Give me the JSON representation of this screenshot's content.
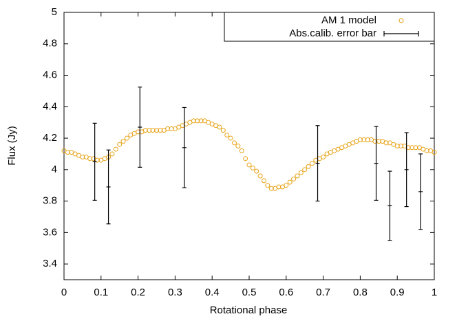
{
  "chart_data": {
    "type": "scatter",
    "xlabel": "Rotational phase",
    "ylabel": "Flux (Jy)",
    "xlim": [
      0,
      1
    ],
    "xticks": [
      0,
      0.1,
      0.2,
      0.3,
      0.4,
      0.5,
      0.6,
      0.7,
      0.8,
      0.9,
      1
    ],
    "ylim": [
      3.3,
      5
    ],
    "yticks": [
      3.4,
      3.6,
      3.8,
      4,
      4.2,
      4.4,
      4.6,
      4.8,
      5
    ],
    "legend": "upper right",
    "series": [
      {
        "name": "AM 1 model",
        "color": "#e8a317",
        "marker": "circle",
        "x": [
          0,
          0.01,
          0.02,
          0.03,
          0.04,
          0.05,
          0.06,
          0.07,
          0.08,
          0.09,
          0.1,
          0.11,
          0.12,
          0.13,
          0.14,
          0.15,
          0.16,
          0.17,
          0.18,
          0.19,
          0.2,
          0.21,
          0.22,
          0.23,
          0.24,
          0.25,
          0.26,
          0.27,
          0.28,
          0.29,
          0.3,
          0.31,
          0.32,
          0.33,
          0.34,
          0.35,
          0.36,
          0.37,
          0.38,
          0.39,
          0.4,
          0.41,
          0.42,
          0.43,
          0.44,
          0.45,
          0.46,
          0.47,
          0.48,
          0.49,
          0.5,
          0.51,
          0.52,
          0.53,
          0.54,
          0.55,
          0.56,
          0.57,
          0.58,
          0.59,
          0.6,
          0.61,
          0.62,
          0.63,
          0.64,
          0.65,
          0.66,
          0.67,
          0.68,
          0.69,
          0.7,
          0.71,
          0.72,
          0.73,
          0.74,
          0.75,
          0.76,
          0.77,
          0.78,
          0.79,
          0.8,
          0.81,
          0.82,
          0.83,
          0.84,
          0.85,
          0.86,
          0.87,
          0.88,
          0.89,
          0.9,
          0.91,
          0.92,
          0.93,
          0.94,
          0.95,
          0.96,
          0.97,
          0.98,
          0.99,
          1
        ],
        "values": [
          4.12,
          4.11,
          4.11,
          4.1,
          4.09,
          4.08,
          4.08,
          4.07,
          4.07,
          4.06,
          4.06,
          4.07,
          4.08,
          4.1,
          4.13,
          4.16,
          4.18,
          4.2,
          4.22,
          4.23,
          4.24,
          4.24,
          4.25,
          4.25,
          4.25,
          4.25,
          4.25,
          4.25,
          4.26,
          4.26,
          4.26,
          4.27,
          4.28,
          4.29,
          4.3,
          4.31,
          4.31,
          4.31,
          4.31,
          4.3,
          4.29,
          4.28,
          4.27,
          4.25,
          4.22,
          4.2,
          4.17,
          4.15,
          4.12,
          4.07,
          4.03,
          4.01,
          3.99,
          3.96,
          3.93,
          3.9,
          3.88,
          3.88,
          3.89,
          3.89,
          3.9,
          3.92,
          3.94,
          3.96,
          3.98,
          4,
          4.02,
          4.04,
          4.06,
          4.07,
          4.08,
          4.1,
          4.11,
          4.12,
          4.13,
          4.14,
          4.15,
          4.16,
          4.17,
          4.18,
          4.19,
          4.19,
          4.19,
          4.19,
          4.18,
          4.18,
          4.18,
          4.17,
          4.17,
          4.16,
          4.15,
          4.15,
          4.15,
          4.14,
          4.14,
          4.14,
          4.14,
          4.13,
          4.12,
          4.12,
          4.11
        ]
      },
      {
        "name": "Abs.calib. error bar",
        "color": "#000000",
        "marker": "errorbar",
        "x": [
          0.083,
          0.12,
          0.205,
          0.325,
          0.685,
          0.843,
          0.88,
          0.925,
          0.963
        ],
        "values": [
          4.05,
          3.89,
          4.27,
          4.14,
          4.04,
          4.04,
          3.77,
          4,
          3.86
        ],
        "errors": [
          0.245,
          0.235,
          0.255,
          0.255,
          0.24,
          0.235,
          0.22,
          0.235,
          0.24
        ]
      }
    ]
  }
}
